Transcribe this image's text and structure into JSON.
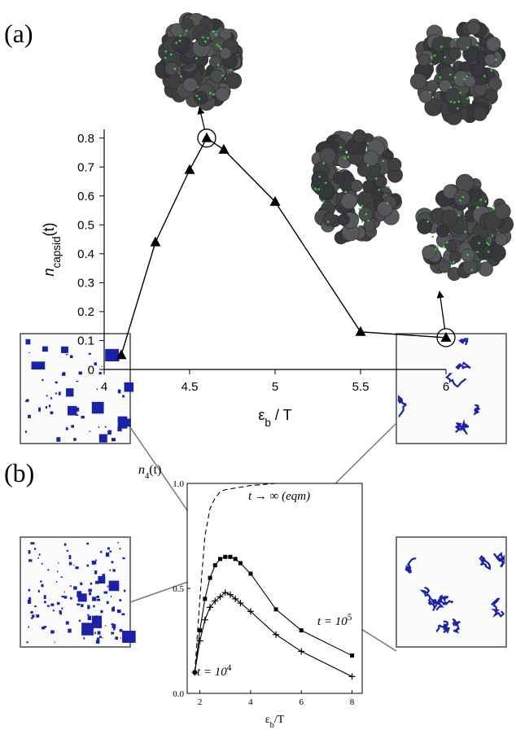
{
  "chart_data": [
    {
      "type": "line",
      "label": "(a)",
      "xlabel": {
        "main": "ε",
        "sub": "b",
        "tail": " / T"
      },
      "ylabel": {
        "main": "n",
        "sub": "capsid",
        "tail": "(t)"
      },
      "xlim": [
        4,
        6
      ],
      "xticks": [
        4,
        4.5,
        5,
        5.5,
        6
      ],
      "ylim": [
        0,
        0.83
      ],
      "yticks": [
        0,
        0.1,
        0.2,
        0.3,
        0.4,
        0.5,
        0.6,
        0.7,
        0.8
      ],
      "series": [
        {
          "color": "#000000",
          "marker": "triangle",
          "dash": false,
          "x": [
            4.1,
            4.3,
            4.5,
            4.6,
            4.7,
            5,
            5.5,
            6
          ],
          "values": [
            0.05,
            0.44,
            0.69,
            0.8,
            0.76,
            0.58,
            0.13,
            0.11
          ]
        }
      ]
    },
    {
      "type": "line",
      "label": "(b)",
      "xlabel": {
        "main": "ε",
        "sub": "b",
        "tail": "/T"
      },
      "ylabel": {
        "main": "n",
        "sub": "4",
        "tail": "(t)"
      },
      "xlim": [
        1.5,
        8.4
      ],
      "xticks": [
        2,
        4,
        6,
        8
      ],
      "ylim": [
        0,
        1
      ],
      "yticks": [
        {
          "value": 0,
          "label": "0.0"
        },
        {
          "value": 0.5,
          "label": "0.5"
        },
        {
          "value": 1,
          "label": "1.0"
        }
      ],
      "series": [
        {
          "color": "#000000",
          "marker": "none",
          "dash": true,
          "label": {
            "main": "t → ∞ (eqm)"
          },
          "x": [
            1.8,
            2,
            2.2,
            2.4,
            2.6,
            2.8,
            3,
            4,
            5,
            6,
            8
          ],
          "values": [
            0.1,
            0.45,
            0.75,
            0.88,
            0.93,
            0.96,
            0.97,
            0.99,
            1,
            1,
            1
          ]
        },
        {
          "color": "#000000",
          "marker": "square",
          "dash": false,
          "label": {
            "main": "t = 10",
            "sup": "5"
          },
          "x": [
            1.8,
            2,
            2.2,
            2.4,
            2.6,
            2.8,
            3,
            3.2,
            3.4,
            3.6,
            4,
            5,
            6,
            8
          ],
          "values": [
            0.1,
            0.3,
            0.45,
            0.55,
            0.61,
            0.64,
            0.65,
            0.65,
            0.64,
            0.62,
            0.57,
            0.4,
            0.3,
            0.18
          ]
        },
        {
          "color": "#000000",
          "marker": "plus",
          "dash": false,
          "label": {
            "main": "t = 10",
            "sup": "4"
          },
          "x": [
            1.8,
            2,
            2.2,
            2.4,
            2.6,
            2.8,
            3,
            3.2,
            3.4,
            3.6,
            4,
            5,
            6,
            8
          ],
          "values": [
            0.1,
            0.25,
            0.35,
            0.41,
            0.44,
            0.46,
            0.48,
            0.47,
            0.45,
            0.43,
            0.39,
            0.28,
            0.2,
            0.08
          ]
        }
      ]
    }
  ]
}
